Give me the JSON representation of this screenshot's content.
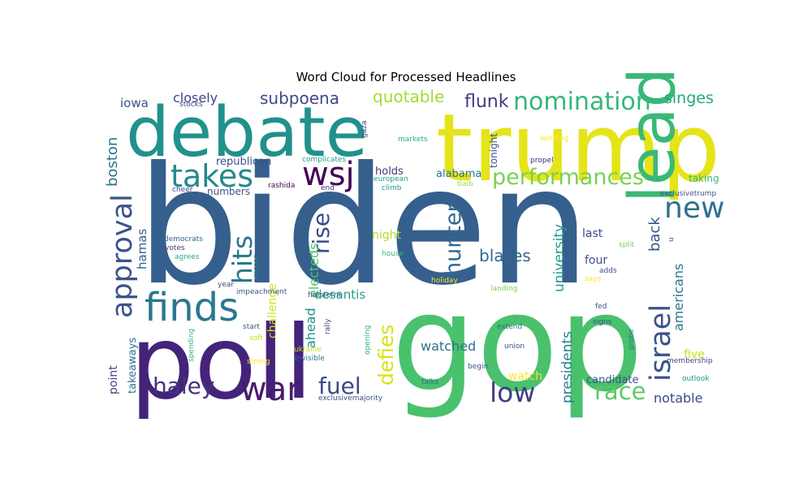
{
  "chart_data": {
    "type": "wordcloud",
    "title": "Word Cloud for Processed Headlines",
    "palette": "viridis",
    "words": [
      {
        "text": "biden",
        "color": "#355f8d"
      },
      {
        "text": "trump",
        "color": "#e4e418"
      },
      {
        "text": "gop",
        "color": "#4ac16d"
      },
      {
        "text": "poll",
        "color": "#44237a"
      },
      {
        "text": "debate",
        "color": "#21918c"
      },
      {
        "text": "lead",
        "color": "#38b977"
      },
      {
        "text": "finds",
        "color": "#2a788e"
      },
      {
        "text": "wsj",
        "color": "#440154"
      },
      {
        "text": "takes",
        "color": "#23888e"
      },
      {
        "text": "war",
        "color": "#481b6d"
      },
      {
        "text": "approval",
        "color": "#3b528b"
      },
      {
        "text": "nomination",
        "color": "#35b779"
      },
      {
        "text": "israel",
        "color": "#3b528b"
      },
      {
        "text": "new",
        "color": "#2c728e"
      },
      {
        "text": "performances",
        "color": "#7ad151"
      },
      {
        "text": "hits",
        "color": "#2a788e"
      },
      {
        "text": "haley",
        "color": "#46337e"
      },
      {
        "text": "fuel",
        "color": "#3e4989"
      },
      {
        "text": "low",
        "color": "#433e85"
      },
      {
        "text": "hunter",
        "color": "#31688e"
      },
      {
        "text": "race",
        "color": "#5ec962"
      },
      {
        "text": "rise",
        "color": "#3e4989"
      },
      {
        "text": "defies",
        "color": "#d8e219"
      },
      {
        "text": "quotable",
        "color": "#a5db36"
      },
      {
        "text": "flunk",
        "color": "#443983"
      },
      {
        "text": "subpoena",
        "color": "#404688"
      },
      {
        "text": "singes",
        "color": "#22a884"
      },
      {
        "text": "blazes",
        "color": "#31688e"
      },
      {
        "text": "university",
        "color": "#1f9e89"
      },
      {
        "text": "presidents",
        "color": "#26828e"
      },
      {
        "text": "americans",
        "color": "#2a788e"
      },
      {
        "text": "back",
        "color": "#3b528b"
      },
      {
        "text": "boston",
        "color": "#2c728e"
      },
      {
        "text": "closely",
        "color": "#414487"
      },
      {
        "text": "notable",
        "color": "#3e4989"
      },
      {
        "text": "watched",
        "color": "#2c728e"
      },
      {
        "text": "electeds",
        "color": "#52c569"
      },
      {
        "text": "hamas",
        "color": "#34618d"
      },
      {
        "text": "ahead",
        "color": "#21918c"
      },
      {
        "text": "desantis",
        "color": "#1fa188"
      },
      {
        "text": "challenge",
        "color": "#d2e21b"
      },
      {
        "text": "iowa",
        "color": "#3b528b"
      },
      {
        "text": "republican",
        "color": "#3b528b"
      },
      {
        "text": "holds",
        "color": "#46337e"
      },
      {
        "text": "alabama",
        "color": "#2c728e"
      },
      {
        "text": "night",
        "color": "#b5de2b"
      },
      {
        "text": "last",
        "color": "#3e4989"
      },
      {
        "text": "four",
        "color": "#3b528b"
      },
      {
        "text": "five",
        "color": "#c8e020"
      },
      {
        "text": "watch",
        "color": "#fde725"
      },
      {
        "text": "candidate",
        "color": "#3b528b"
      },
      {
        "text": "takeaways",
        "color": "#2c728e"
      },
      {
        "text": "point",
        "color": "#404688"
      },
      {
        "text": "tonight",
        "color": "#3b528b"
      },
      {
        "text": "numbers",
        "color": "#3b528b"
      },
      {
        "text": "taking",
        "color": "#35b779"
      },
      {
        "text": "exclusivetrump",
        "color": "#3b528b"
      },
      {
        "text": "stocks",
        "color": "#3e4989"
      },
      {
        "text": "gaza",
        "color": "#3b528b"
      },
      {
        "text": "complicates",
        "color": "#1fa088"
      },
      {
        "text": "markets",
        "color": "#26ad81"
      },
      {
        "text": "winding",
        "color": "#fde725"
      },
      {
        "text": "propel",
        "color": "#482878"
      },
      {
        "text": "european",
        "color": "#1f9e89"
      },
      {
        "text": "climb",
        "color": "#1f968b"
      },
      {
        "text": "cheer",
        "color": "#3e4989"
      },
      {
        "text": "rashida",
        "color": "#440154"
      },
      {
        "text": "end",
        "color": "#482878"
      },
      {
        "text": "tlaib",
        "color": "#a0da39"
      },
      {
        "text": "democrats",
        "color": "#34618d"
      },
      {
        "text": "votes",
        "color": "#46337e"
      },
      {
        "text": "agrees",
        "color": "#22a884"
      },
      {
        "text": "presses",
        "color": "#2a788e"
      },
      {
        "text": "firestorm",
        "color": "#3b528b"
      },
      {
        "text": "house",
        "color": "#35b779"
      },
      {
        "text": "split",
        "color": "#75d054"
      },
      {
        "text": "landing",
        "color": "#7ad151"
      },
      {
        "text": "adds",
        "color": "#3b528b"
      },
      {
        "text": "says",
        "color": "#fde725"
      },
      {
        "text": "year",
        "color": "#3e4989"
      },
      {
        "text": "impeachment",
        "color": "#3b528b"
      },
      {
        "text": "holiday",
        "color": "#fde725"
      },
      {
        "text": "start",
        "color": "#3b528b"
      },
      {
        "text": "soft",
        "color": "#c0df25"
      },
      {
        "text": "strong",
        "color": "#fde725"
      },
      {
        "text": "spending",
        "color": "#35b779"
      },
      {
        "text": "rally",
        "color": "#3e4989"
      },
      {
        "text": "ukraine",
        "color": "#c2df23"
      },
      {
        "text": "invisible",
        "color": "#2c728e"
      },
      {
        "text": "opening",
        "color": "#29af7f"
      },
      {
        "text": "extend",
        "color": "#2c728e"
      },
      {
        "text": "union",
        "color": "#3b528b"
      },
      {
        "text": "signs",
        "color": "#3b528b"
      },
      {
        "text": "fed",
        "color": "#3b528b"
      },
      {
        "text": "probe",
        "color": "#2c728e"
      },
      {
        "text": "membership",
        "color": "#3e4989"
      },
      {
        "text": "outlook",
        "color": "#1f968b"
      },
      {
        "text": "begin",
        "color": "#3b528b"
      },
      {
        "text": "talks",
        "color": "#2c728e"
      },
      {
        "text": "exclusivemajority",
        "color": "#3b528b"
      },
      {
        "text": "u",
        "color": "#3b528b"
      }
    ]
  }
}
